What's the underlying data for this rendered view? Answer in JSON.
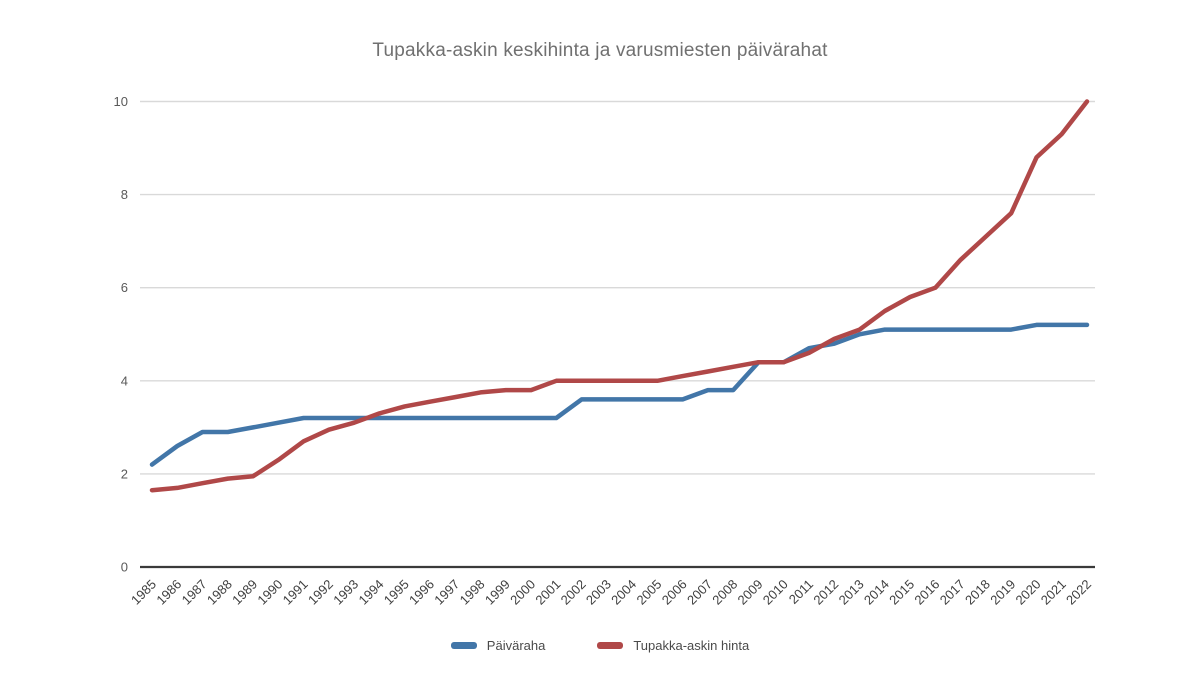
{
  "title": "Tupakka-askin keskihinta ja varusmiesten päivärahat",
  "legend": [
    {
      "label": "Päiväraha",
      "color": "#4276a8"
    },
    {
      "label": "Tupakka-askin hinta",
      "color": "#b04848"
    }
  ],
  "chart_data": {
    "type": "line",
    "title": "Tupakka-askin keskihinta ja varusmiesten päivärahat",
    "xlabel": "",
    "ylabel": "",
    "x": [
      1985,
      1986,
      1987,
      1988,
      1989,
      1990,
      1991,
      1992,
      1993,
      1994,
      1995,
      1996,
      1997,
      1998,
      1999,
      2000,
      2001,
      2002,
      2003,
      2004,
      2005,
      2006,
      2007,
      2008,
      2009,
      2010,
      2011,
      2012,
      2013,
      2014,
      2015,
      2016,
      2017,
      2018,
      2019,
      2020,
      2021,
      2022
    ],
    "series": [
      {
        "name": "Päiväraha",
        "color": "#4276a8",
        "values": [
          2.2,
          2.6,
          2.9,
          2.9,
          3.0,
          3.1,
          3.2,
          3.2,
          3.2,
          3.2,
          3.2,
          3.2,
          3.2,
          3.2,
          3.2,
          3.2,
          3.2,
          3.6,
          3.6,
          3.6,
          3.6,
          3.6,
          3.8,
          3.8,
          4.4,
          4.4,
          4.7,
          4.8,
          5.0,
          5.1,
          5.1,
          5.1,
          5.1,
          5.1,
          5.1,
          5.2,
          5.2,
          5.2
        ]
      },
      {
        "name": "Tupakka-askin hinta",
        "color": "#b04848",
        "values": [
          1.65,
          1.7,
          1.8,
          1.9,
          1.95,
          2.3,
          2.7,
          2.95,
          3.1,
          3.3,
          3.45,
          3.55,
          3.65,
          3.75,
          3.8,
          3.8,
          4.0,
          4.0,
          4.0,
          4.0,
          4.0,
          4.1,
          4.2,
          4.3,
          4.4,
          4.4,
          4.6,
          4.9,
          5.1,
          5.5,
          5.8,
          6.0,
          6.6,
          7.1,
          7.6,
          8.8,
          9.3,
          10.0
        ]
      }
    ],
    "ylim": [
      0,
      10
    ],
    "yticks": [
      0,
      2,
      4,
      6,
      8,
      10
    ],
    "grid": true,
    "legend_position": "bottom",
    "colors": {
      "gridline": "#d9d9d9",
      "axis_line": "#3a3a3a",
      "y_tick_label": "#595959",
      "x_tick_label": "#3f3f3f",
      "title": "#707070"
    }
  }
}
